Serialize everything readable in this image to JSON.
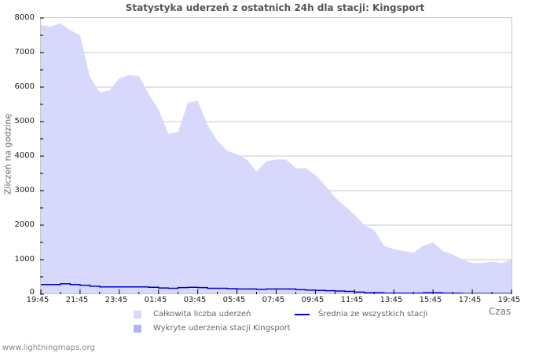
{
  "page": {
    "title": "Statystyka uderzeń z ostatnich 24h dla stacji: Kingsport",
    "footer": "www.lightningmaps.org",
    "colors": {
      "total_fill": "#d8d8fc",
      "detected_fill": "#b4b4f8",
      "average_line": "#0000cc",
      "grid": "#c8c8c8",
      "frame": "#c8c8c8"
    }
  },
  "axes": {
    "ylabel": "Zliczeń na godzinę",
    "xlabel": "Czas",
    "yticks": [
      "8000",
      "7000",
      "6000",
      "5000",
      "4000",
      "3000",
      "2000",
      "1000",
      "0"
    ],
    "xticks": [
      "19:45",
      "21:45",
      "23:45",
      "01:45",
      "03:45",
      "05:45",
      "07:45",
      "09:45",
      "11:45",
      "13:45",
      "15:45",
      "17:45",
      "19:45"
    ]
  },
  "legend": {
    "total": "Całkowita liczba uderzeń",
    "detected": "Wykryte uderzenia stacji Kingsport",
    "average": "Średnia ze wszystkich stacji"
  },
  "chart_data": {
    "type": "area",
    "title": "Statystyka uderzeń z ostatnich 24h dla stacji: Kingsport",
    "xlabel": "Czas",
    "ylabel": "Zliczeń na godzinę",
    "ylim": [
      0,
      8000
    ],
    "xlim": [
      "19:45",
      "19:45"
    ],
    "grid": true,
    "legend_position": "bottom",
    "x": [
      "19:45",
      "20:15",
      "20:45",
      "21:15",
      "21:45",
      "22:15",
      "22:45",
      "23:15",
      "23:45",
      "00:15",
      "00:45",
      "01:15",
      "01:45",
      "02:15",
      "02:45",
      "03:15",
      "03:45",
      "04:15",
      "04:45",
      "05:15",
      "05:45",
      "06:15",
      "06:45",
      "07:15",
      "07:45",
      "08:15",
      "08:45",
      "09:15",
      "09:45",
      "10:15",
      "10:45",
      "11:15",
      "11:45",
      "12:15",
      "12:45",
      "13:15",
      "13:45",
      "14:15",
      "14:45",
      "15:15",
      "15:45",
      "16:15",
      "16:45",
      "17:15",
      "17:45",
      "18:15",
      "18:45",
      "19:15",
      "19:45"
    ],
    "series": [
      {
        "name": "Całkowita liczba uderzeń",
        "type": "area",
        "color": "#d8d8fc",
        "values": [
          7800,
          7750,
          7850,
          7650,
          7500,
          6300,
          5850,
          5900,
          6250,
          6350,
          6320,
          5800,
          5350,
          4650,
          4700,
          5550,
          5600,
          4900,
          4450,
          4150,
          4050,
          3900,
          3550,
          3850,
          3900,
          3900,
          3650,
          3650,
          3450,
          3150,
          2800,
          2550,
          2300,
          2000,
          1850,
          1400,
          1300,
          1250,
          1200,
          1400,
          1500,
          1250,
          1150,
          1000,
          900,
          900,
          950,
          900,
          1000
        ]
      },
      {
        "name": "Wykryte uderzenia stacji Kingsport",
        "type": "area",
        "color": "#b4b4f8",
        "values": [
          0,
          0,
          0,
          0,
          0,
          0,
          0,
          0,
          0,
          0,
          0,
          0,
          0,
          0,
          0,
          0,
          0,
          0,
          0,
          0,
          0,
          0,
          0,
          0,
          0,
          0,
          0,
          0,
          0,
          0,
          0,
          0,
          0,
          0,
          0,
          0,
          0,
          0,
          0,
          0,
          0,
          0,
          0,
          0,
          0,
          0,
          0,
          0,
          0
        ]
      },
      {
        "name": "Średnia ze wszystkich stacji",
        "type": "line",
        "color": "#0000cc",
        "values": [
          280,
          280,
          300,
          280,
          260,
          230,
          210,
          210,
          210,
          210,
          210,
          200,
          180,
          170,
          190,
          200,
          190,
          170,
          170,
          160,
          150,
          150,
          140,
          150,
          150,
          150,
          130,
          120,
          110,
          100,
          90,
          80,
          60,
          40,
          40,
          30,
          30,
          30,
          30,
          40,
          40,
          30,
          30,
          20,
          20,
          20,
          20,
          20,
          20
        ]
      }
    ]
  }
}
